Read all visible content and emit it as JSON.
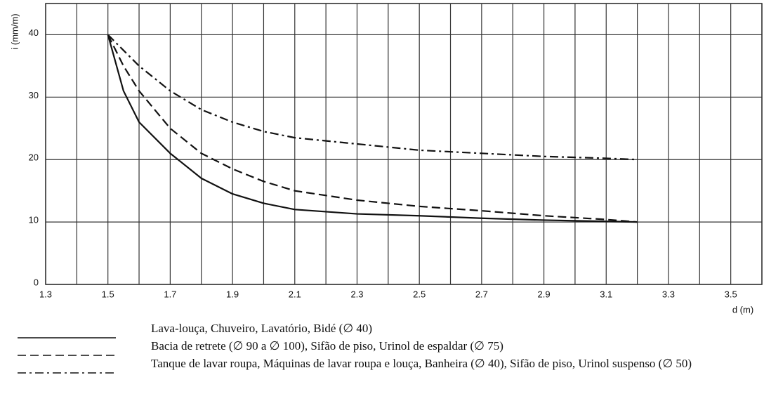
{
  "chart_data": {
    "type": "line",
    "ylabel": "i (mm/m)",
    "xlabel": "d (m)",
    "xlim": [
      1.3,
      3.6
    ],
    "ylim": [
      0,
      45
    ],
    "xticks": [
      1.3,
      1.5,
      1.7,
      1.9,
      2.1,
      2.3,
      2.5,
      2.7,
      2.9,
      3.1,
      3.3,
      3.5
    ],
    "yticks": [
      0,
      10,
      20,
      30,
      40
    ],
    "grid": true,
    "x": [
      1.5,
      1.55,
      1.6,
      1.7,
      1.8,
      1.9,
      2.0,
      2.1,
      2.3,
      2.5,
      2.7,
      2.9,
      3.1,
      3.2
    ],
    "series": [
      {
        "name": "Lava-louça, Chuveiro, Lavatório, Bidé (∅ 40)",
        "color": "#111111",
        "dash": "solid",
        "values": [
          40,
          31,
          26,
          21,
          17,
          14.5,
          13,
          12,
          11.3,
          11,
          10.6,
          10.3,
          10.1,
          10
        ]
      },
      {
        "name": "Bacia de retrete (∅ 90 a ∅ 100), Sifão de piso, Urinol de espaldar (∅ 75)",
        "color": "#111111",
        "dash": "dashed",
        "values": [
          40,
          35,
          31,
          25,
          21,
          18.5,
          16.5,
          15,
          13.5,
          12.5,
          11.8,
          11,
          10.4,
          10
        ]
      },
      {
        "name": "Tanque de lavar roupa, Máquinas de lavar roupa e louça, Banheira (∅ 40), Sifão de piso, Urinol suspenso (∅ 50)",
        "color": "#111111",
        "dash": "dashdot",
        "values": [
          40,
          37.5,
          35,
          31,
          28,
          26,
          24.5,
          23.5,
          22.5,
          21.5,
          21,
          20.5,
          20.2,
          20
        ]
      }
    ]
  }
}
